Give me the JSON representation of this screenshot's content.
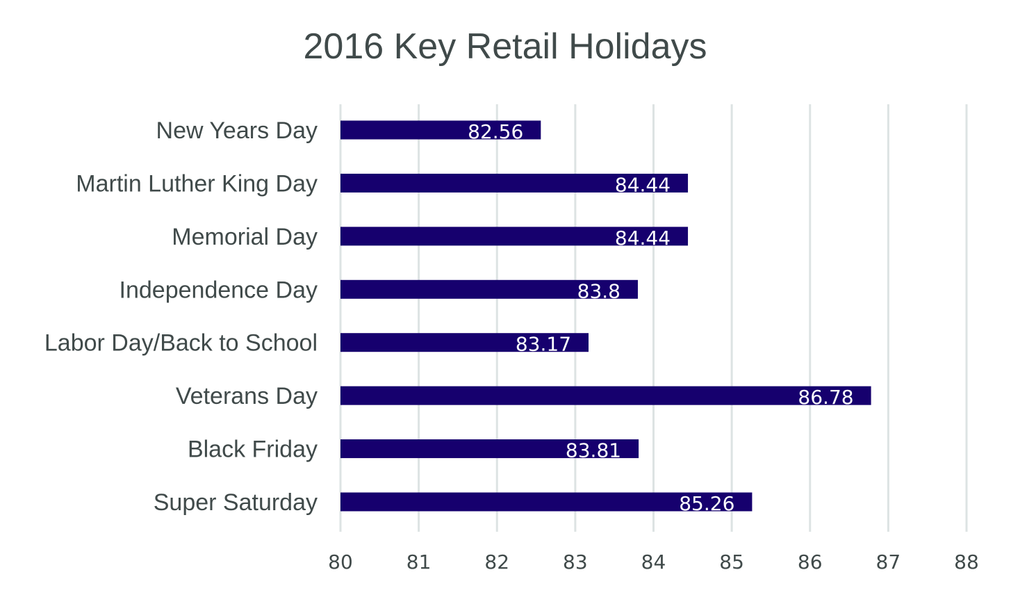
{
  "chart_data": {
    "type": "bar",
    "orientation": "horizontal",
    "title": "2016 Key Retail Holidays",
    "xlabel": "",
    "ylabel": "",
    "categories": [
      "New Years Day",
      "Martin Luther King Day",
      "Memorial Day",
      "Independence Day",
      "Labor Day/Back to School",
      "Veterans Day",
      "Black Friday",
      "Super Saturday"
    ],
    "values": [
      82.56,
      84.44,
      84.44,
      83.8,
      83.17,
      86.78,
      83.81,
      85.26
    ],
    "data_labels": [
      "82.56",
      "84.44",
      "84.44",
      "83.8",
      "83.17",
      "86.78",
      "83.81",
      "85.26"
    ],
    "xlim": [
      80,
      88
    ],
    "xticks": [
      "80",
      "81",
      "82",
      "83",
      "84",
      "85",
      "86",
      "87",
      "88"
    ],
    "grid": "vertical",
    "legend": "none",
    "colors": {
      "bar": "#16006e",
      "grid": "#dde3e3",
      "text": "#404a4a",
      "label": "#ffffff"
    }
  }
}
